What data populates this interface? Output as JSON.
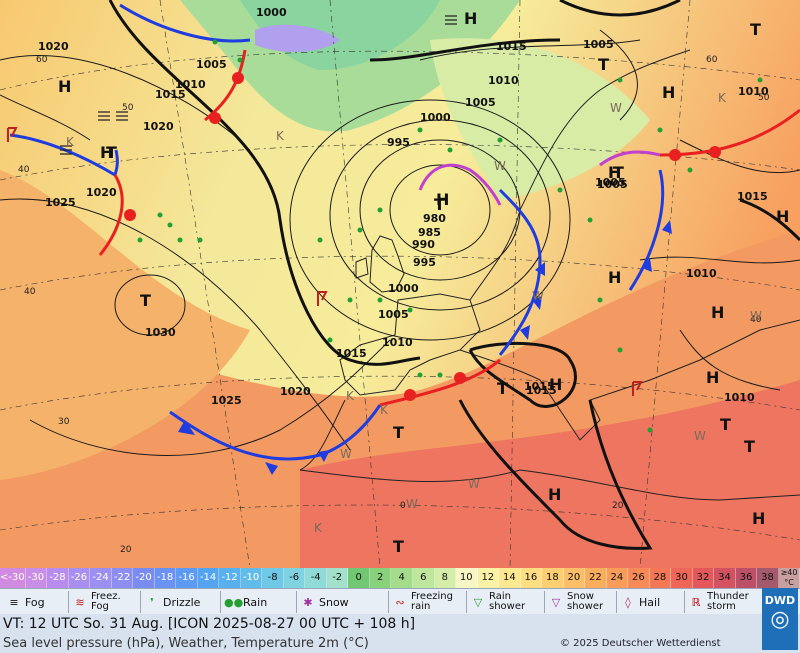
{
  "map": {
    "centers": [
      {
        "type": "H",
        "label": "H"
      },
      {
        "type": "H",
        "label": "H"
      },
      {
        "type": "T",
        "label": "T"
      },
      {
        "type": "H",
        "label": "H"
      },
      {
        "type": "T",
        "label": "T"
      },
      {
        "type": "H",
        "label": "H"
      },
      {
        "type": "T",
        "label": "T"
      },
      {
        "type": "T",
        "label": "T"
      },
      {
        "type": "H",
        "label": "H"
      },
      {
        "type": "H",
        "label": "H"
      },
      {
        "type": "T",
        "label": "T"
      },
      {
        "type": "H",
        "label": "H"
      },
      {
        "type": "T",
        "label": "T"
      },
      {
        "type": "H",
        "label": "H"
      },
      {
        "type": "T",
        "label": "T"
      },
      {
        "type": "H",
        "label": "H"
      },
      {
        "type": "H",
        "label": "H"
      },
      {
        "type": "T",
        "label": "T"
      },
      {
        "type": "T",
        "label": "T"
      },
      {
        "type": "H",
        "label": "H"
      },
      {
        "type": "T",
        "label": "T"
      },
      {
        "type": "H",
        "label": "H"
      },
      {
        "type": "T",
        "label": "T"
      },
      {
        "type": "H",
        "label": "H"
      }
    ],
    "isobar_labels": [
      "1020",
      "1000",
      "1005",
      "1010",
      "1015",
      "1020",
      "1025",
      "1020",
      "1030",
      "1015",
      "995",
      "1000",
      "1005",
      "1010",
      "980",
      "985",
      "990",
      "995",
      "1000",
      "1005",
      "1010",
      "1015",
      "1020",
      "1025",
      "1015",
      "1010",
      "1005",
      "1005",
      "1015",
      "1010",
      "1010",
      "1015",
      "1005"
    ],
    "lat_labels": [
      "60",
      "50",
      "40",
      "40",
      "30",
      "20",
      "60",
      "50",
      "40",
      "20",
      "0"
    ],
    "weather_letters": [
      "K",
      "K",
      "K",
      "W",
      "W",
      "W",
      "W",
      "K",
      "K",
      "W",
      "W",
      "K",
      "W",
      "W"
    ]
  },
  "scale": {
    "cells": [
      {
        "label": "<-30",
        "color": "#d08ae0"
      },
      {
        "label": "-30",
        "color": "#c88ee6"
      },
      {
        "label": "-28",
        "color": "#b88cec"
      },
      {
        "label": "-26",
        "color": "#a88ef0"
      },
      {
        "label": "-24",
        "color": "#9c8ff2"
      },
      {
        "label": "-22",
        "color": "#8c8ef2"
      },
      {
        "label": "-20",
        "color": "#7a8cf0"
      },
      {
        "label": "-18",
        "color": "#6a92f2"
      },
      {
        "label": "-16",
        "color": "#5c9af4"
      },
      {
        "label": "-14",
        "color": "#55a4f2"
      },
      {
        "label": "-12",
        "color": "#59b0ee"
      },
      {
        "label": "-10",
        "color": "#62bcea"
      },
      {
        "label": "-8",
        "color": "#6ec8e6"
      },
      {
        "label": "-6",
        "color": "#7fd2e0"
      },
      {
        "label": "-4",
        "color": "#90dad8"
      },
      {
        "label": "-2",
        "color": "#a2e0cc"
      },
      {
        "label": "0",
        "color": "#72c872"
      },
      {
        "label": "2",
        "color": "#88d27c"
      },
      {
        "label": "4",
        "color": "#a4dc8c"
      },
      {
        "label": "6",
        "color": "#bee69c"
      },
      {
        "label": "8",
        "color": "#d4eeaa"
      },
      {
        "label": "10",
        "color": "#f6f7c4"
      },
      {
        "label": "12",
        "color": "#f9f2a6"
      },
      {
        "label": "14",
        "color": "#fbe890"
      },
      {
        "label": "16",
        "color": "#fdde80"
      },
      {
        "label": "18",
        "color": "#fdcf72"
      },
      {
        "label": "20",
        "color": "#fcbe66"
      },
      {
        "label": "22",
        "color": "#fbad5e"
      },
      {
        "label": "24",
        "color": "#f99c58"
      },
      {
        "label": "26",
        "color": "#f78a56"
      },
      {
        "label": "28",
        "color": "#f47856"
      },
      {
        "label": "30",
        "color": "#ef6658"
      },
      {
        "label": "32",
        "color": "#e4585c"
      },
      {
        "label": "34",
        "color": "#d25262"
      },
      {
        "label": "36",
        "color": "#bc5068"
      },
      {
        "label": "38",
        "color": "#a45a6c"
      },
      {
        "label": "≥40\n°C",
        "color": "#c8a0a0"
      }
    ]
  },
  "legend": {
    "fog": "Fog",
    "freezing_fog": "Freez.\nFog",
    "drizzle": "Drizzle",
    "rain": "Rain",
    "snow": "Snow",
    "freezing_rain": "Freezing\nrain",
    "rain_shower": "Rain\nshower",
    "snow_shower": "Snow\nshower",
    "hail": "Hail",
    "thunderstorm": "Thunder\nstorm"
  },
  "footer": {
    "valid_time": "VT: 12 UTC So.  31 Aug. [ICON 2025-08-27  00 UTC + 108 h]",
    "description": "Sea level pressure (hPa), Weather, Temperature 2m (°C)",
    "copyright": "© 2025 Deutscher Wetterdienst",
    "logo": "DWD"
  },
  "colors": {
    "cold_front": "#1e3ce0",
    "warm_front": "#e82020",
    "occlusion": "#c040d0",
    "isobar": "#1a1a1a"
  }
}
